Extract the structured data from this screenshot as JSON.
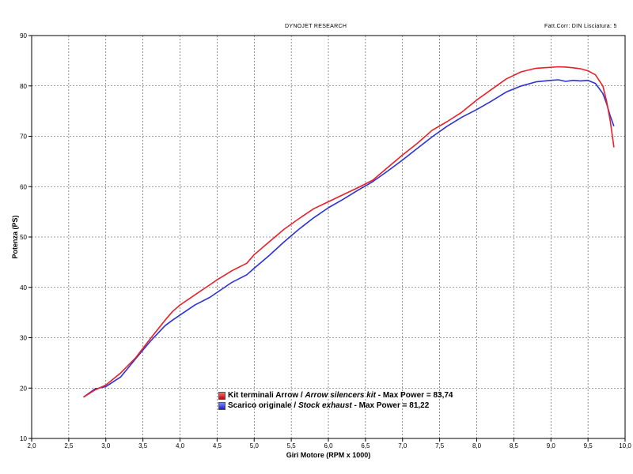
{
  "header": {
    "title": "DYNOJET RESEARCH",
    "correction": "Fatt.Corr: DIN  Lisciatura: 5"
  },
  "chart_data": {
    "type": "line",
    "xlabel": "Giri Motore (RPM x 1000)",
    "ylabel": "Potenza (PS)",
    "xlim": [
      2.0,
      10.0
    ],
    "ylim": [
      10,
      90
    ],
    "x_ticks": [
      "2,0",
      "2,5",
      "3,0",
      "3,5",
      "4,0",
      "4,5",
      "5,0",
      "5,5",
      "6,0",
      "6,5",
      "7,0",
      "7,5",
      "8,0",
      "8,5",
      "9,0",
      "9,5",
      "10,0"
    ],
    "y_ticks": [
      "10",
      "20",
      "30",
      "40",
      "50",
      "60",
      "70",
      "80",
      "90"
    ],
    "grid": true,
    "legend_position": "bottom-center",
    "series": [
      {
        "name_parts": [
          "Kit terminali Arrow",
          "Arrow silencers kit",
          "Max Power = 83,74"
        ],
        "color": "#e8202a",
        "x": [
          2.7,
          2.85,
          3.0,
          3.2,
          3.4,
          3.6,
          3.8,
          3.9,
          4.0,
          4.2,
          4.4,
          4.5,
          4.7,
          4.9,
          5.0,
          5.2,
          5.4,
          5.6,
          5.8,
          6.0,
          6.2,
          6.4,
          6.6,
          6.8,
          7.0,
          7.2,
          7.4,
          7.6,
          7.8,
          8.0,
          8.2,
          8.4,
          8.6,
          8.8,
          9.0,
          9.1,
          9.2,
          9.3,
          9.4,
          9.5,
          9.6,
          9.7,
          9.75,
          9.8,
          9.85
        ],
        "y": [
          18.2,
          19.6,
          20.6,
          23.0,
          26.0,
          29.8,
          33.5,
          35.2,
          36.5,
          38.5,
          40.5,
          41.5,
          43.3,
          44.8,
          46.5,
          49.0,
          51.5,
          53.6,
          55.6,
          57.0,
          58.4,
          59.8,
          61.3,
          63.8,
          66.3,
          68.6,
          71.2,
          72.9,
          74.8,
          77.2,
          79.3,
          81.4,
          82.8,
          83.5,
          83.7,
          83.8,
          83.74,
          83.6,
          83.4,
          83.0,
          82.2,
          80.0,
          77.0,
          73.0,
          67.8
        ]
      },
      {
        "name_parts": [
          "Scarico originale",
          "Stock exhaust",
          "Max Power = 81,22"
        ],
        "color": "#2a32d8",
        "x": [
          2.7,
          2.85,
          3.0,
          3.2,
          3.4,
          3.6,
          3.8,
          3.9,
          4.0,
          4.2,
          4.4,
          4.5,
          4.7,
          4.9,
          5.0,
          5.2,
          5.4,
          5.6,
          5.8,
          6.0,
          6.2,
          6.4,
          6.6,
          6.8,
          7.0,
          7.2,
          7.4,
          7.6,
          7.8,
          8.0,
          8.2,
          8.4,
          8.6,
          8.8,
          9.0,
          9.1,
          9.2,
          9.3,
          9.4,
          9.5,
          9.6,
          9.7,
          9.75,
          9.8,
          9.85
        ],
        "y": [
          18.2,
          19.8,
          20.3,
          22.2,
          25.8,
          29.3,
          32.4,
          33.5,
          34.5,
          36.5,
          38.0,
          39.0,
          41.0,
          42.5,
          43.8,
          46.3,
          49.0,
          51.5,
          53.8,
          55.8,
          57.5,
          59.3,
          61.0,
          63.1,
          65.3,
          67.6,
          69.9,
          72.0,
          73.8,
          75.3,
          77.0,
          78.8,
          80.0,
          80.8,
          81.1,
          81.22,
          80.9,
          81.1,
          81.0,
          81.1,
          80.5,
          78.5,
          76.5,
          74.0,
          72.0
        ]
      }
    ]
  }
}
